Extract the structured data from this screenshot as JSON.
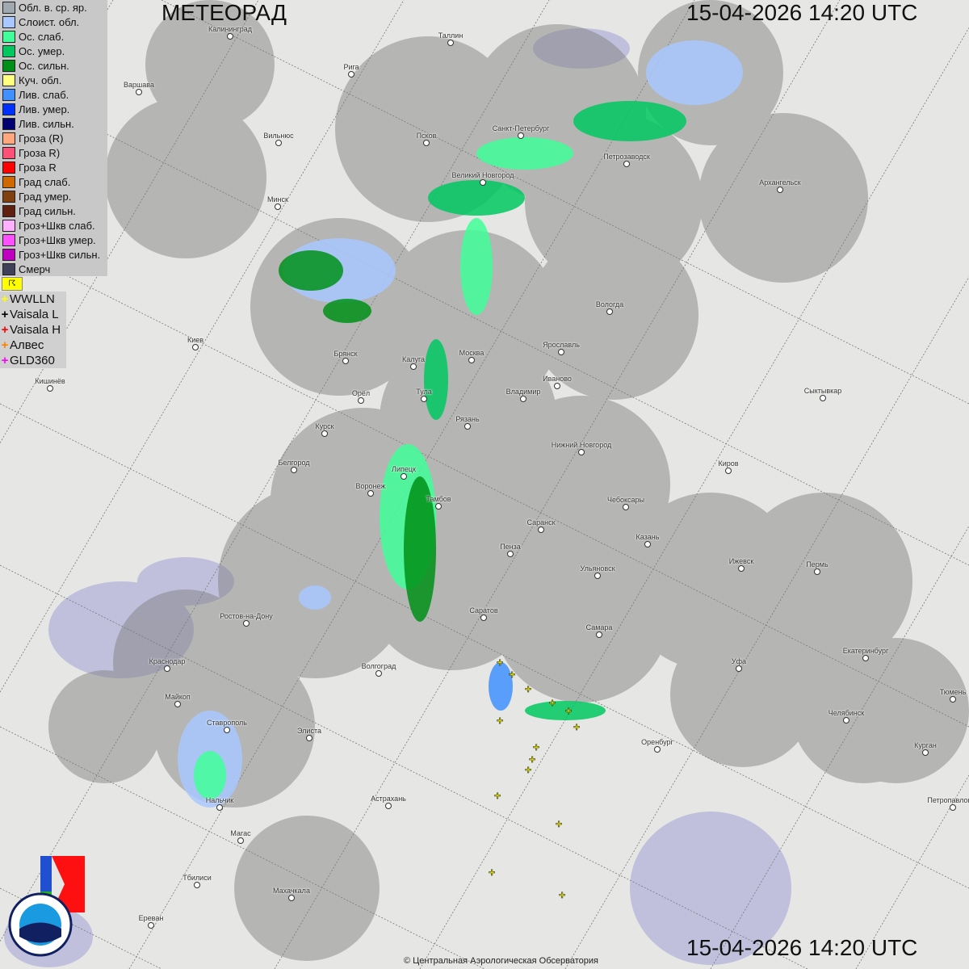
{
  "header": {
    "title": "МЕТЕОРАД",
    "timestamp_top": "15-04-2026  14:20 UTC",
    "timestamp_bottom": "15-04-2026  14:20 UTC"
  },
  "legend": [
    {
      "label": "Обл. в. ср. яр.",
      "color": "#a0a8b0"
    },
    {
      "label": "Слоист. обл.",
      "color": "#a8c8ff"
    },
    {
      "label": "Ос. слаб.",
      "color": "#40ff98"
    },
    {
      "label": "Ос. умер.",
      "color": "#00c860"
    },
    {
      "label": "Ос. сильн.",
      "color": "#009018"
    },
    {
      "label": "Куч. обл.",
      "color": "#ffff80"
    },
    {
      "label": "Лив. слаб.",
      "color": "#4090ff"
    },
    {
      "label": "Лив. умер.",
      "color": "#0030ff"
    },
    {
      "label": "Лив. сильн.",
      "color": "#000070"
    },
    {
      "label": "Гроза (R)",
      "color": "#ffa880"
    },
    {
      "label": "Гроза R)",
      "color": "#ff5078"
    },
    {
      "label": "Гроза R",
      "color": "#ff0000"
    },
    {
      "label": "Град слаб.",
      "color": "#d06800"
    },
    {
      "label": "Град умер.",
      "color": "#804010"
    },
    {
      "label": "Град сильн.",
      "color": "#602010"
    },
    {
      "label": "Гроз+Шкв слаб.",
      "color": "#ffb0ff"
    },
    {
      "label": "Гроз+Шкв умер.",
      "color": "#ff50ff"
    },
    {
      "label": "Гроз+Шкв сильн.",
      "color": "#c000c0"
    },
    {
      "label": "Смерч",
      "color": "#404058"
    }
  ],
  "lightning_toggle": "☈",
  "lightning": [
    {
      "label": "WWLLN",
      "color": "#ffff00"
    },
    {
      "label": "Vaisala L",
      "color": "#000000"
    },
    {
      "label": "Vaisala H",
      "color": "#ff0000"
    },
    {
      "label": "Алвес",
      "color": "#ff8000"
    },
    {
      "label": "GLD360",
      "color": "#ff00ff"
    }
  ],
  "cities": [
    "Калининград",
    "Таллин",
    "Рига",
    "Варшава",
    "Вильнюс",
    "Псков",
    "Санкт-Петербург",
    "Петрозаводск",
    "Архангельск",
    "Великий Новгород",
    "Минск",
    "Вологда",
    "Киев",
    "Брянск",
    "Калуга",
    "Москва",
    "Ярославль",
    "Иваново",
    "Кишинёв",
    "Орёл",
    "Тула",
    "Владимир",
    "Сыктывкар",
    "Рязань",
    "Курск",
    "Нижний Новгород",
    "Белгород",
    "Киров",
    "Липецк",
    "Воронеж",
    "Тамбов",
    "Чебоксары",
    "Саранск",
    "Казань",
    "Пенза",
    "Ижевск",
    "Пермь",
    "Ульяновск",
    "Ростов-на-Дону",
    "Саратов",
    "Самара",
    "Екатеринбург",
    "Краснодар",
    "Волгоград",
    "Уфа",
    "Тюмень",
    "Майкоп",
    "Челябинск",
    "Ставрополь",
    "Элиста",
    "Оренбург",
    "Курган",
    "Астрахань",
    "Нальчик",
    "Петропавловск",
    "Магас",
    "Тбилиси",
    "Махачкала",
    "Ереван"
  ],
  "logos": {
    "cao": "ЦАО 1941",
    "roshydromet": "РОСГИДРОМЕТ ROSHYDROMET"
  },
  "copyright": "© Центральная Аэрологическая Обсерватория"
}
